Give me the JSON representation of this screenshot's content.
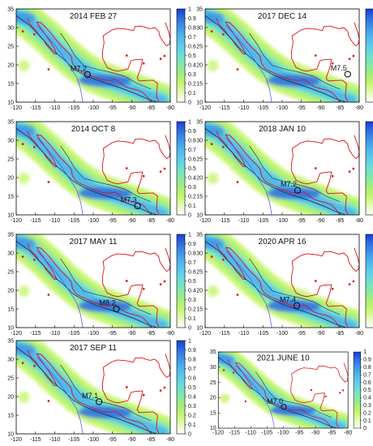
{
  "map_extent": {
    "lon_min": -120,
    "lon_max": -80,
    "lat_min": 10,
    "lat_max": 35
  },
  "x_ticks": [
    "-120",
    "-115",
    "-110",
    "-105",
    "-100",
    "-95",
    "-90",
    "-85",
    "-80"
  ],
  "y_ticks": [
    "10",
    "15",
    "20",
    "25",
    "30",
    "35"
  ],
  "colorbar": {
    "ticks": [
      "1",
      "0.9",
      "0.8",
      "0.7",
      "0.6",
      "0.5",
      "0.4",
      "0.3",
      "0.2",
      "0.1",
      "0"
    ],
    "colors": [
      "#1a3cd6",
      "#2f6fe0",
      "#3f95e6",
      "#4fb6ec",
      "#5ccdeb",
      "#6edfd2",
      "#86e8a8",
      "#a5ef7a",
      "#c6f56d",
      "#e4fbb6",
      "#ffffff"
    ]
  },
  "colors": {
    "coastline": "#e01010",
    "trench_line": "#222222",
    "border_line": "#4a4aff",
    "marker": "#111111"
  },
  "panels": [
    {
      "title": "2014 FEB 27",
      "quake": {
        "label": "M7.2",
        "lon": -101.5,
        "lat": 17.4
      }
    },
    {
      "title": "2017 DEC 14",
      "quake": {
        "label": "M7.5",
        "lon": -83.0,
        "lat": 17.5
      }
    },
    {
      "title": "2014 OCT 8",
      "quake": {
        "label": "M7.3",
        "lon": -88.5,
        "lat": 12.4
      }
    },
    {
      "title": "2018 JAN 10",
      "quake": {
        "label": "M7.2",
        "lon": -96.0,
        "lat": 16.6
      }
    },
    {
      "title": "2017 MAY 11",
      "quake": {
        "label": "M8.2",
        "lon": -94.0,
        "lat": 15.0
      }
    },
    {
      "title": "2020 APR 16",
      "quake": {
        "label": "M7.4",
        "lon": -96.2,
        "lat": 15.9
      }
    },
    {
      "title": "2017 SEP 11",
      "quake": {
        "label": "M7.1",
        "lon": -98.5,
        "lat": 18.6
      }
    },
    {
      "title": "2021 JUNE 10",
      "quake": {
        "label": "M7.0",
        "lon": -99.8,
        "lat": 17.0
      }
    }
  ]
}
